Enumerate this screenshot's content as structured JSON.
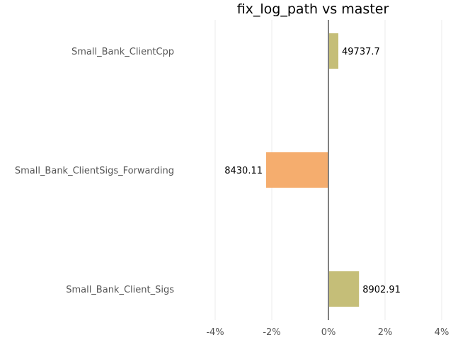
{
  "chart_data": {
    "type": "bar",
    "orientation": "horizontal",
    "title": "fix_log_path vs master",
    "xlabel": "",
    "ylabel": "",
    "categories": [
      "Small_Bank_ClientCpp",
      "Small_Bank_ClientSigs_Forwarding",
      "Small_Bank_Client_Sigs"
    ],
    "values": [
      0.35,
      -2.2,
      1.08
    ],
    "value_labels": [
      "49737.7",
      "8430.11",
      "8902.91"
    ],
    "bar_colors": [
      "#c5be78",
      "#f5ad6e",
      "#c5be78"
    ],
    "xlim": [
      -4,
      4
    ],
    "xticks": [
      -4,
      -2,
      0,
      2,
      4
    ],
    "xtick_labels": [
      "-4%",
      "-2%",
      "0%",
      "2%",
      "4%"
    ],
    "grid": "vertical",
    "zero_line_color": "#808080"
  }
}
